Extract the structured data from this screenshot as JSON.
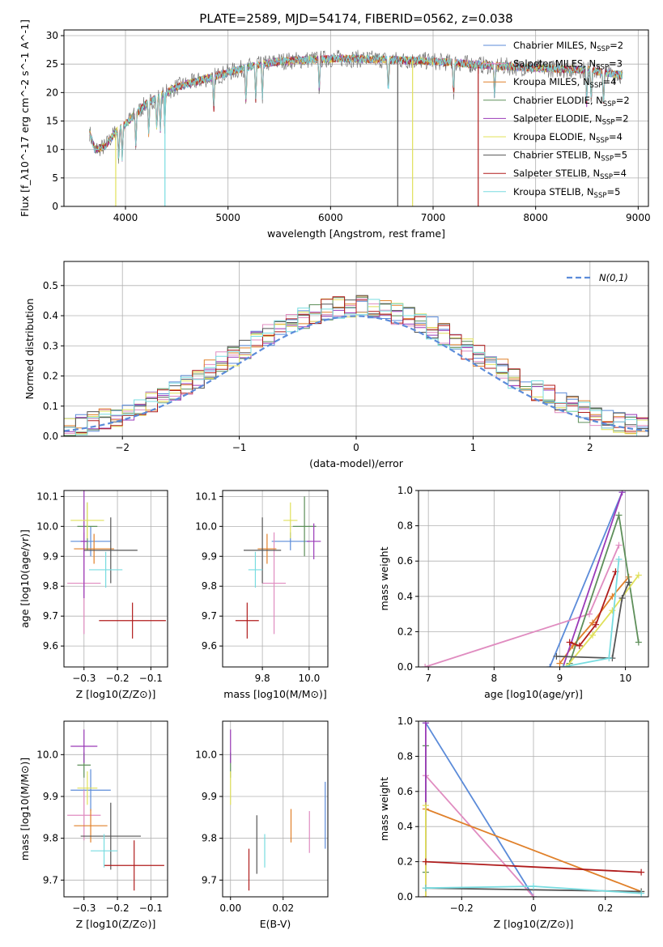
{
  "figure_title": "PLATE=2589, MJD=54174, FIBERID=0562, z=0.038",
  "models": [
    {
      "name": "Chabrier MILES",
      "nssp": "2",
      "color": "#5b8bd9"
    },
    {
      "name": "Salpeter MILES",
      "nssp": "3",
      "color": "#e08cc0"
    },
    {
      "name": "Kroupa MILES",
      "nssp": "4",
      "color": "#e0802a"
    },
    {
      "name": "Chabrier ELODIE",
      "nssp": "2",
      "color": "#5e8f5a"
    },
    {
      "name": "Salpeter ELODIE",
      "nssp": "2",
      "color": "#9a3ab8"
    },
    {
      "name": "Kroupa ELODIE",
      "nssp": "4",
      "color": "#e0e05a"
    },
    {
      "name": "Chabrier STELIB",
      "nssp": "5",
      "color": "#555555"
    },
    {
      "name": "Salpeter STELIB",
      "nssp": "4",
      "color": "#b01c1c"
    },
    {
      "name": "Kroupa STELIB",
      "nssp": "5",
      "color": "#78dce0"
    }
  ],
  "chart_data": [
    {
      "id": "spectrum",
      "type": "line",
      "xlabel": "wavelength [Angstrom, rest frame]",
      "ylabel": "Flux [f_λ10^-17 erg cm^-2 s^-1 A^-1]",
      "xlim": [
        3400,
        9100
      ],
      "ylim": [
        0,
        31
      ],
      "xticks": [
        4000,
        5000,
        6000,
        7000,
        8000,
        9000
      ],
      "yticks": [
        0,
        5,
        10,
        15,
        20,
        25,
        30
      ],
      "continuum": [
        [
          3650,
          13
        ],
        [
          3700,
          10
        ],
        [
          3800,
          10.5
        ],
        [
          3900,
          13
        ],
        [
          4000,
          14.5
        ],
        [
          4200,
          18
        ],
        [
          4500,
          21
        ],
        [
          4800,
          22.5
        ],
        [
          5000,
          23.5
        ],
        [
          5200,
          24.5
        ],
        [
          5500,
          25.5
        ],
        [
          5800,
          25.8
        ],
        [
          6100,
          26
        ],
        [
          6500,
          25.8
        ],
        [
          7000,
          25.5
        ],
        [
          7500,
          24.8
        ],
        [
          8000,
          24.3
        ],
        [
          8500,
          24
        ],
        [
          8850,
          23
        ]
      ],
      "dips": [
        3934,
        3969,
        4101,
        4227,
        4305,
        4340,
        4383,
        4861,
        5175,
        5270,
        5335,
        5890,
        6563,
        7200,
        7600,
        8498,
        8542,
        8662
      ]
    },
    {
      "id": "residuals",
      "type": "histogram",
      "xlabel": "(data-model)/error",
      "ylabel": "Normed distribution",
      "xlim": [
        -2.5,
        2.5
      ],
      "ylim": [
        0,
        0.58
      ],
      "xticks": [
        -2,
        -1,
        0,
        1,
        2
      ],
      "yticks": [
        0,
        0.1,
        0.2,
        0.3,
        0.4,
        0.5
      ],
      "gaussian_label": "N(0,1)",
      "gaussian_color": "#5b8bd9",
      "bin_width": 0.1
    },
    {
      "id": "age_vs_Z",
      "type": "errorbar",
      "xlabel": "Z [log10(Z/Z⊙)]",
      "ylabel": "age  [log10(age/yr)]",
      "xlim": [
        -0.36,
        -0.05
      ],
      "ylim": [
        9.53,
        10.12
      ],
      "xticks": [
        -0.3,
        -0.2,
        -0.1
      ],
      "yticks": [
        9.6,
        9.7,
        9.8,
        9.9,
        10.0,
        10.1
      ],
      "points": [
        {
          "x": -0.28,
          "y": 9.95,
          "xerr": 0.06,
          "yerr": 0.05
        },
        {
          "x": -0.3,
          "y": 9.81,
          "xerr": 0.05,
          "yerr": 0.17
        },
        {
          "x": -0.27,
          "y": 9.925,
          "xerr": 0.06,
          "yerr": 0.05
        },
        {
          "x": -0.29,
          "y": 10.0,
          "xerr": 0.03,
          "yerr": 0.08
        },
        {
          "x": -0.3,
          "y": 9.95,
          "xerr": 0.01,
          "yerr": 0.19
        },
        {
          "x": -0.29,
          "y": 10.02,
          "xerr": 0.05,
          "yerr": 0.06
        },
        {
          "x": -0.22,
          "y": 9.92,
          "xerr": 0.08,
          "yerr": 0.11
        },
        {
          "x": -0.155,
          "y": 9.685,
          "xerr": 0.1,
          "yerr": 0.06
        },
        {
          "x": -0.235,
          "y": 9.855,
          "xerr": 0.05,
          "yerr": 0.06
        }
      ]
    },
    {
      "id": "age_vs_mass",
      "type": "errorbar",
      "xlabel": "mass [log10(M/M⊙)]",
      "ylabel": "",
      "xlim": [
        9.63,
        10.08
      ],
      "ylim": [
        9.53,
        10.12
      ],
      "xticks": [
        9.8,
        10.0
      ],
      "yticks": [
        9.6,
        9.7,
        9.8,
        9.9,
        10.0,
        10.1
      ],
      "points": [
        {
          "x": 9.92,
          "y": 9.95,
          "xerr": 0.08,
          "yerr": 0.03
        },
        {
          "x": 9.85,
          "y": 9.81,
          "xerr": 0.05,
          "yerr": 0.17
        },
        {
          "x": 9.82,
          "y": 9.925,
          "xerr": 0.04,
          "yerr": 0.05
        },
        {
          "x": 9.98,
          "y": 10.0,
          "xerr": 0.05,
          "yerr": 0.1
        },
        {
          "x": 10.02,
          "y": 9.95,
          "xerr": 0.03,
          "yerr": 0.06
        },
        {
          "x": 9.92,
          "y": 10.02,
          "xerr": 0.03,
          "yerr": 0.06
        },
        {
          "x": 9.8,
          "y": 9.92,
          "xerr": 0.08,
          "yerr": 0.11
        },
        {
          "x": 9.735,
          "y": 9.685,
          "xerr": 0.05,
          "yerr": 0.06
        },
        {
          "x": 9.77,
          "y": 9.855,
          "xerr": 0.03,
          "yerr": 0.06
        }
      ]
    },
    {
      "id": "weight_vs_age",
      "type": "line",
      "xlabel": "age  [log10(age/yr)]",
      "ylabel": "mass weight",
      "xlim": [
        6.85,
        10.35
      ],
      "ylim": [
        0,
        1
      ],
      "xticks": [
        7,
        8,
        9,
        10
      ],
      "yticks": [
        0.0,
        0.2,
        0.4,
        0.6,
        0.8,
        1.0
      ],
      "series": [
        {
          "x": [
            8.85,
            9.95
          ],
          "y": [
            0.0,
            0.99
          ]
        },
        {
          "x": [
            6.95,
            9.45,
            9.9
          ],
          "y": [
            0.0,
            0.3,
            0.69
          ]
        },
        {
          "x": [
            9.0,
            9.2,
            9.5,
            9.8,
            10.05
          ],
          "y": [
            0.02,
            0.12,
            0.25,
            0.4,
            0.51
          ]
        },
        {
          "x": [
            9.15,
            9.9,
            10.2
          ],
          "y": [
            0.02,
            0.86,
            0.14
          ]
        },
        {
          "x": [
            9.05,
            9.95
          ],
          "y": [
            0.0,
            0.99
          ]
        },
        {
          "x": [
            9.1,
            9.5,
            9.8,
            10.2
          ],
          "y": [
            0.0,
            0.18,
            0.32,
            0.52
          ]
        },
        {
          "x": [
            8.95,
            9.8,
            9.95,
            10.05
          ],
          "y": [
            0.06,
            0.05,
            0.39,
            0.48
          ]
        },
        {
          "x": [
            9.15,
            9.3,
            9.55,
            9.85
          ],
          "y": [
            0.14,
            0.12,
            0.24,
            0.54
          ]
        },
        {
          "x": [
            9.05,
            9.75,
            9.9
          ],
          "y": [
            0.0,
            0.05,
            0.61
          ]
        }
      ]
    },
    {
      "id": "mass_vs_Z",
      "type": "errorbar",
      "xlabel": "Z [log10(Z/Z⊙)]",
      "ylabel": "mass [log10(M/M⊙)]",
      "xlim": [
        -0.36,
        -0.05
      ],
      "ylim": [
        9.66,
        10.08
      ],
      "xticks": [
        -0.3,
        -0.2,
        -0.1
      ],
      "yticks": [
        9.7,
        9.8,
        9.9,
        10.0
      ],
      "points": [
        {
          "x": -0.28,
          "y": 9.915,
          "xerr": 0.06,
          "yerr": 0.05
        },
        {
          "x": -0.3,
          "y": 9.855,
          "xerr": 0.05,
          "yerr": 0.06
        },
        {
          "x": -0.28,
          "y": 9.83,
          "xerr": 0.05,
          "yerr": 0.04
        },
        {
          "x": -0.3,
          "y": 9.975,
          "xerr": 0.02,
          "yerr": 0.03
        },
        {
          "x": -0.3,
          "y": 10.02,
          "xerr": 0.04,
          "yerr": 0.04
        },
        {
          "x": -0.29,
          "y": 9.92,
          "xerr": 0.03,
          "yerr": 0.04
        },
        {
          "x": -0.22,
          "y": 9.805,
          "xerr": 0.09,
          "yerr": 0.08
        },
        {
          "x": -0.15,
          "y": 9.735,
          "xerr": 0.09,
          "yerr": 0.06
        },
        {
          "x": -0.24,
          "y": 9.77,
          "xerr": 0.04,
          "yerr": 0.04
        }
      ]
    },
    {
      "id": "mass_vs_EBV",
      "type": "errorbar",
      "xlabel": "E(B-V)",
      "ylabel": "",
      "xlim": [
        -0.003,
        0.037
      ],
      "ylim": [
        9.66,
        10.08
      ],
      "xticks": [
        0.0,
        0.02
      ],
      "yticks": [
        9.7,
        9.8,
        9.9,
        10.0
      ],
      "points": [
        {
          "x": 0.036,
          "y": 9.855,
          "xerr": 0,
          "yerr": 0.08
        },
        {
          "x": 0.03,
          "y": 9.815,
          "xerr": 0,
          "yerr": 0.05
        },
        {
          "x": 0.023,
          "y": 9.83,
          "xerr": 0,
          "yerr": 0.04
        },
        {
          "x": 0.0,
          "y": 9.975,
          "xerr": 0,
          "yerr": 0.03
        },
        {
          "x": 0.0,
          "y": 10.02,
          "xerr": 0,
          "yerr": 0.04
        },
        {
          "x": 0.0,
          "y": 9.92,
          "xerr": 0,
          "yerr": 0.04
        },
        {
          "x": 0.01,
          "y": 9.785,
          "xerr": 0,
          "yerr": 0.07
        },
        {
          "x": 0.007,
          "y": 9.725,
          "xerr": 0,
          "yerr": 0.05
        },
        {
          "x": 0.013,
          "y": 9.77,
          "xerr": 0,
          "yerr": 0.04
        }
      ]
    },
    {
      "id": "weight_vs_Z",
      "type": "line",
      "xlabel": "Z [log10(Z/Z⊙)]",
      "ylabel": "mass weight",
      "xlim": [
        -0.32,
        0.32
      ],
      "ylim": [
        0,
        1
      ],
      "xticks": [
        -0.2,
        0.0,
        0.2
      ],
      "yticks": [
        0.0,
        0.2,
        0.4,
        0.6,
        0.8,
        1.0
      ],
      "series": [
        {
          "x": [
            -0.3,
            0.0
          ],
          "y": [
            0.99,
            0.0
          ]
        },
        {
          "x": [
            -0.3,
            0.0
          ],
          "y": [
            0.69,
            0.0
          ]
        },
        {
          "x": [
            -0.3,
            0.3
          ],
          "y": [
            0.5,
            0.03
          ]
        },
        {
          "x": [
            -0.3,
            -0.3
          ],
          "y": [
            0.86,
            0.14
          ]
        },
        {
          "x": [
            -0.3,
            -0.3
          ],
          "y": [
            0.99,
            0.0
          ]
        },
        {
          "x": [
            -0.3,
            -0.3
          ],
          "y": [
            0.52,
            0.0
          ]
        },
        {
          "x": [
            -0.3,
            0.3
          ],
          "y": [
            0.05,
            0.03
          ]
        },
        {
          "x": [
            -0.3,
            0.3
          ],
          "y": [
            0.2,
            0.14
          ]
        },
        {
          "x": [
            -0.3,
            0.0,
            0.3
          ],
          "y": [
            0.05,
            0.06,
            0.02
          ]
        }
      ]
    }
  ]
}
